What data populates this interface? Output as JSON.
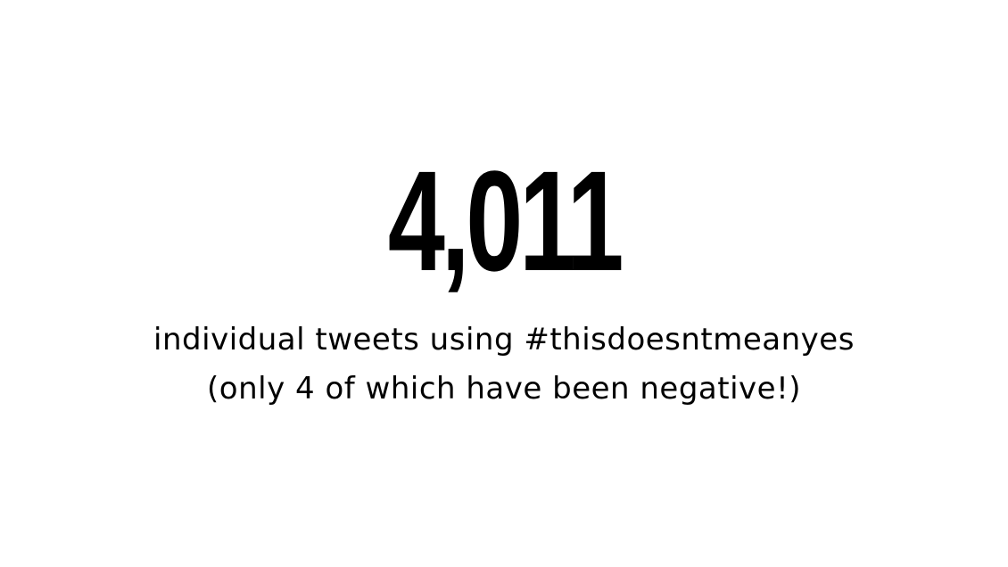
{
  "slide": {
    "headline_number": "4,011",
    "caption_line_1": "individual tweets using #thisdoesntmeanyes",
    "caption_line_2": "(only 4 of which have been negative!)"
  },
  "colors": {
    "background": "#ffffff",
    "text": "#000000"
  }
}
